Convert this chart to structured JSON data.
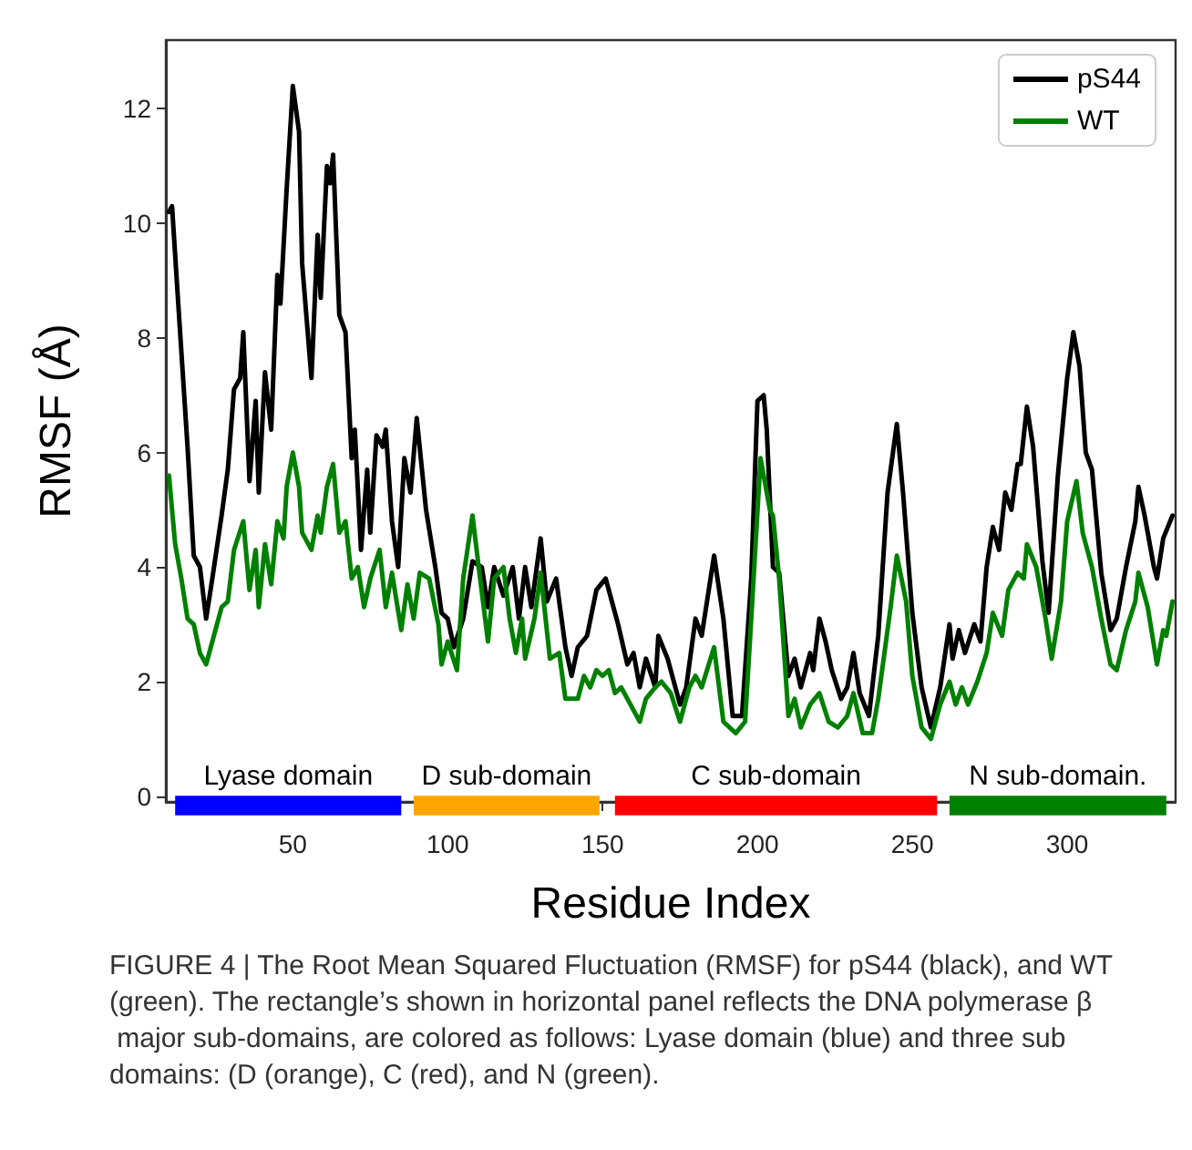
{
  "chart_data": [
    {
      "type": "line",
      "ylabel": "RMSF (Å)",
      "xlim": [
        9,
        335
      ],
      "xticks": [
        50,
        100,
        150,
        200,
        250,
        300
      ],
      "tick_labels": "y",
      "ylim": [
        -0.1,
        13.2
      ],
      "yticks": [
        0,
        2,
        4,
        6,
        8,
        10,
        12
      ],
      "grid": false,
      "legend": "top right",
      "marker": "none",
      "line_style": "solid",
      "series": [
        {
          "name": "pS44",
          "color": "#000000",
          "x": [
            10,
            11,
            13,
            16,
            18,
            20,
            22,
            24,
            27,
            29,
            31,
            33,
            34,
            36,
            38,
            39,
            41,
            43,
            45,
            46,
            48,
            50,
            52,
            53,
            56,
            58,
            59,
            61,
            62,
            63,
            65,
            67,
            69,
            70,
            72,
            74,
            75,
            77,
            79,
            80,
            82,
            84,
            86,
            88,
            90,
            93,
            96,
            98,
            100,
            102,
            105,
            108,
            111,
            113,
            115,
            118,
            121,
            123,
            125,
            127,
            130,
            132,
            135,
            138,
            140,
            142,
            145,
            148,
            151,
            153,
            155,
            158,
            160,
            162,
            164,
            167,
            168,
            171,
            175,
            177,
            180,
            182,
            186,
            189,
            192,
            195,
            198,
            200,
            202,
            203,
            205,
            207,
            210,
            212,
            214,
            217,
            218,
            220,
            222,
            224,
            227,
            229,
            231,
            233,
            236,
            239,
            242,
            245,
            247,
            250,
            253,
            256,
            259,
            262,
            263,
            265,
            267,
            270,
            272,
            274,
            276,
            278,
            280,
            282,
            284,
            285,
            287,
            289,
            292,
            294,
            297,
            300,
            302,
            304,
            306,
            308,
            311,
            314,
            316,
            319,
            322,
            323,
            325,
            328,
            329,
            331,
            334
          ],
          "values": [
            10.2,
            10.3,
            8.6,
            6.1,
            4.2,
            4.0,
            3.1,
            3.8,
            4.9,
            5.7,
            7.1,
            7.3,
            8.1,
            5.5,
            6.9,
            5.3,
            7.4,
            6.4,
            9.1,
            8.6,
            10.6,
            12.4,
            11.6,
            9.3,
            7.3,
            9.8,
            8.7,
            11.0,
            10.7,
            11.2,
            8.4,
            8.1,
            5.9,
            6.4,
            4.3,
            5.7,
            4.6,
            6.3,
            6.1,
            6.4,
            4.8,
            4.0,
            5.9,
            5.3,
            6.6,
            5.0,
            4.0,
            3.2,
            3.1,
            2.6,
            3.1,
            4.1,
            4.0,
            3.3,
            4.0,
            3.5,
            4.0,
            3.1,
            4.0,
            3.3,
            4.5,
            3.4,
            3.8,
            2.6,
            2.1,
            2.6,
            2.8,
            3.6,
            3.8,
            3.4,
            3.0,
            2.3,
            2.5,
            1.9,
            2.4,
            1.9,
            2.8,
            2.4,
            1.6,
            1.9,
            3.1,
            2.8,
            4.2,
            3.1,
            1.4,
            1.4,
            3.8,
            6.9,
            7.0,
            6.4,
            4.0,
            3.9,
            2.1,
            2.4,
            1.9,
            2.5,
            2.2,
            3.1,
            2.7,
            2.2,
            1.7,
            1.9,
            2.5,
            1.8,
            1.4,
            2.8,
            5.3,
            6.5,
            5.3,
            3.2,
            1.9,
            1.2,
            1.9,
            3.0,
            2.4,
            2.9,
            2.5,
            3.0,
            2.7,
            4.0,
            4.7,
            4.3,
            5.3,
            5.0,
            5.8,
            5.8,
            6.8,
            6.1,
            4.1,
            3.2,
            5.6,
            7.3,
            8.1,
            7.5,
            6.0,
            5.7,
            3.9,
            2.9,
            3.1,
            4.0,
            4.8,
            5.4,
            4.9,
            4.0,
            3.8,
            4.5,
            4.9
          ]
        },
        {
          "name": "WT",
          "color": "#008000",
          "x": [
            10,
            12,
            14,
            16,
            18,
            20,
            22,
            24,
            27,
            29,
            31,
            34,
            36,
            38,
            39,
            41,
            43,
            45,
            47,
            48,
            50,
            52,
            53,
            56,
            58,
            59,
            61,
            63,
            65,
            67,
            69,
            71,
            73,
            75,
            78,
            80,
            82,
            85,
            87,
            89,
            91,
            94,
            97,
            98,
            100,
            103,
            105,
            108,
            110,
            113,
            115,
            118,
            120,
            122,
            124,
            125,
            128,
            130,
            133,
            136,
            138,
            142,
            144,
            146,
            148,
            150,
            152,
            154,
            156,
            159,
            162,
            164,
            167,
            169,
            172,
            175,
            178,
            180,
            182,
            186,
            189,
            193,
            196,
            198,
            201,
            204,
            205,
            207,
            210,
            212,
            214,
            217,
            220,
            223,
            226,
            229,
            231,
            234,
            237,
            239,
            243,
            245,
            248,
            250,
            253,
            256,
            259,
            262,
            264,
            266,
            268,
            271,
            274,
            276,
            279,
            281,
            284,
            286,
            287,
            290,
            293,
            295,
            298,
            300,
            303,
            305,
            308,
            311,
            314,
            316,
            319,
            322,
            323,
            326,
            329,
            331,
            332,
            334
          ],
          "values": [
            5.6,
            4.4,
            3.8,
            3.1,
            3.0,
            2.5,
            2.3,
            2.7,
            3.3,
            3.4,
            4.3,
            4.8,
            3.6,
            4.3,
            3.3,
            4.4,
            3.7,
            4.8,
            4.5,
            5.4,
            6.0,
            5.4,
            4.6,
            4.3,
            4.9,
            4.6,
            5.4,
            5.8,
            4.6,
            4.8,
            3.8,
            4.0,
            3.3,
            3.8,
            4.3,
            3.3,
            3.9,
            2.9,
            3.7,
            3.1,
            3.9,
            3.8,
            3.0,
            2.3,
            2.7,
            2.2,
            3.8,
            4.9,
            4.0,
            2.7,
            3.8,
            4.0,
            3.1,
            2.5,
            3.1,
            2.4,
            3.1,
            3.9,
            2.4,
            2.5,
            1.7,
            1.7,
            2.1,
            1.9,
            2.2,
            2.1,
            2.2,
            1.8,
            1.9,
            1.6,
            1.3,
            1.7,
            1.9,
            2.0,
            1.8,
            1.3,
            1.9,
            2.1,
            1.9,
            2.6,
            1.3,
            1.1,
            1.3,
            3.1,
            5.9,
            5.0,
            4.9,
            3.8,
            1.4,
            1.7,
            1.2,
            1.6,
            1.8,
            1.3,
            1.2,
            1.4,
            1.8,
            1.1,
            1.1,
            1.7,
            3.3,
            4.2,
            3.4,
            2.1,
            1.2,
            1.0,
            1.6,
            2.0,
            1.6,
            1.9,
            1.6,
            2.0,
            2.5,
            3.2,
            2.8,
            3.6,
            3.9,
            3.8,
            4.4,
            4.0,
            3.1,
            2.4,
            3.4,
            4.8,
            5.5,
            4.6,
            4.0,
            3.1,
            2.3,
            2.2,
            2.9,
            3.4,
            3.9,
            3.3,
            2.3,
            2.9,
            2.8,
            3.4
          ]
        }
      ],
      "annotations": [
        "FIGURE 4 | The Root Mean Squared Fluctuation (RMSF) for pS44 (black), and WT (green). The rectangle’s shown in horizontal panel reflects the DNA polymerase β major sub-domains, are colored as follows: Lyase domain (blue) and three sub domains: (D (orange), C (red), and N (green)."
      ]
    },
    {
      "type": "bar",
      "orientation": "horizontal",
      "xlabel": "Residue Index",
      "categories": [
        null
      ],
      "xlim": [
        9,
        335
      ],
      "xticks": [
        50,
        100,
        150,
        200,
        250,
        300
      ],
      "tick_labels": "x",
      "series": [
        {
          "name": "Lyase domain",
          "color": "#0000ff",
          "base": [
            12
          ],
          "values": [
            73
          ]
        },
        {
          "name": "D sub-domain",
          "color": "#ffa500",
          "base": [
            89
          ],
          "values": [
            60
          ]
        },
        {
          "name": "C sub-domain",
          "color": "#ff0000",
          "base": [
            154
          ],
          "values": [
            104
          ]
        },
        {
          "name": "N sub-domain.",
          "color": "#008000",
          "base": [
            262
          ],
          "values": [
            70
          ]
        }
      ]
    }
  ]
}
